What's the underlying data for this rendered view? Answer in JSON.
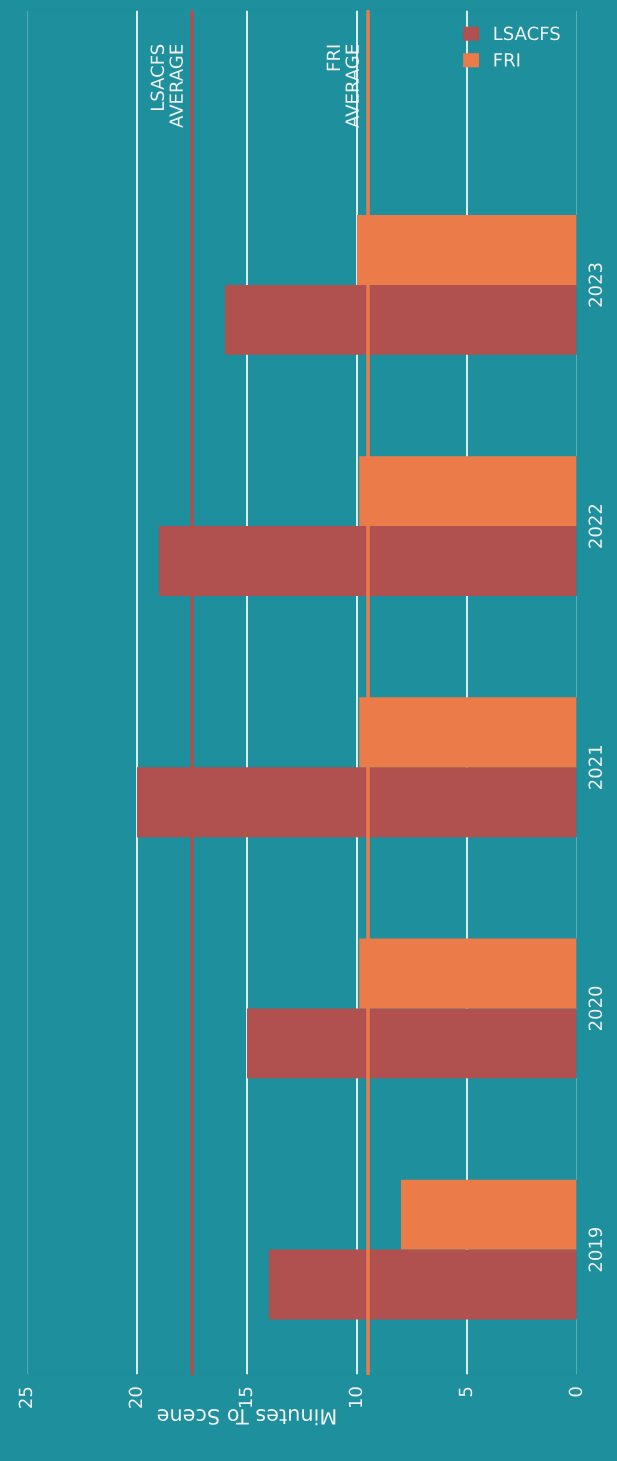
{
  "chart_data": {
    "type": "bar",
    "orientation": "horizontal",
    "xlabel": "Minutes To Scene",
    "categories": [
      "2023",
      "2022",
      "2021",
      "2020",
      "2019"
    ],
    "series": [
      {
        "name": "LSACFS",
        "color": "#b0514f",
        "values": [
          16.0,
          19.0,
          20.0,
          15.0,
          14.0
        ]
      },
      {
        "name": "FRI",
        "color": "#ec7b4a",
        "values": [
          10.0,
          9.9,
          9.9,
          9.9,
          8.0
        ]
      }
    ],
    "xlim": [
      25,
      0
    ],
    "xticks": [
      0,
      5,
      10,
      15,
      20,
      25
    ],
    "grid": "x",
    "legend": "top right",
    "ref_lines": [
      {
        "axis": "x",
        "value": 17.5,
        "label": "LSACFS\nAVERAGE",
        "color": "#b0514f"
      },
      {
        "axis": "x",
        "value": 9.5,
        "label": "FRI\nAVERAGE",
        "color": "#ec7b4a"
      }
    ]
  }
}
